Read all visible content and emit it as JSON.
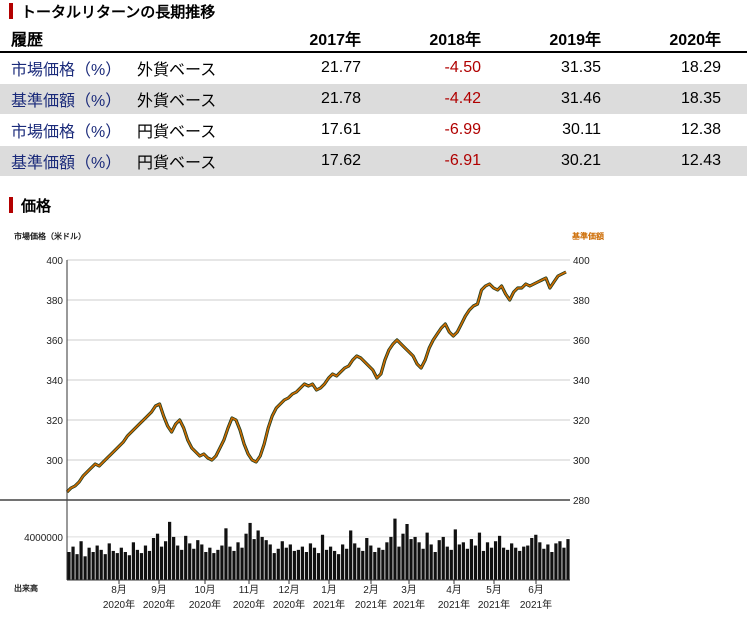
{
  "returns": {
    "title": "トータルリターンの長期推移",
    "header": {
      "label": "履歴",
      "years": [
        "2017年",
        "2018年",
        "2019年",
        "2020年"
      ]
    },
    "rows": [
      {
        "label": "市場価格（%）",
        "currency": "外貨ベース",
        "values": [
          "21.77",
          "-4.50",
          "31.35",
          "18.29"
        ]
      },
      {
        "label": "基準価額（%）",
        "currency": "外貨ベース",
        "values": [
          "21.78",
          "-4.42",
          "31.46",
          "18.35"
        ]
      },
      {
        "label": "市場価格（%）",
        "currency": "円貨ベース",
        "values": [
          "17.61",
          "-6.99",
          "30.11",
          "12.38"
        ]
      },
      {
        "label": "基準価額（%）",
        "currency": "円貨ベース",
        "values": [
          "17.62",
          "-6.91",
          "30.21",
          "12.43"
        ]
      }
    ]
  },
  "price": {
    "title": "価格"
  },
  "chart_data": {
    "type": "line",
    "left_axis_label": "市場価格（米ドル）",
    "right_axis_label": "基準価額",
    "volume_label": "出来高",
    "colors": {
      "market": "#1f3d1f",
      "nav": "#cc6a00",
      "volume": "#111111",
      "grid": "#cccccc"
    },
    "ylim": [
      280,
      400
    ],
    "y_ticks": [
      "400",
      "380",
      "360",
      "340",
      "320",
      "300"
    ],
    "right_ticks": [
      "400",
      "380",
      "360",
      "340",
      "320",
      "300",
      "280"
    ],
    "volume_tick": "4000000",
    "x_labels": [
      {
        "month": "8月",
        "year": "2020年"
      },
      {
        "month": "9月",
        "year": "2020年"
      },
      {
        "month": "10月",
        "year": "2020年"
      },
      {
        "month": "11月",
        "year": "2020年"
      },
      {
        "month": "12月",
        "year": "2020年"
      },
      {
        "month": "1月",
        "year": "2021年"
      },
      {
        "month": "2月",
        "year": "2021年"
      },
      {
        "month": "3月",
        "year": "2021年"
      },
      {
        "month": "4月",
        "year": "2021年"
      },
      {
        "month": "5月",
        "year": "2021年"
      },
      {
        "month": "6月",
        "year": "2021年"
      }
    ],
    "series": [
      {
        "values": [
          284,
          286,
          287,
          289,
          292,
          294,
          296,
          298,
          297,
          299,
          301,
          303,
          305,
          307,
          309,
          312,
          314,
          316,
          318,
          320,
          322,
          324,
          327,
          328,
          322,
          317,
          314,
          318,
          320,
          316,
          310,
          306,
          304,
          302,
          303,
          301,
          300,
          302,
          306,
          310,
          316,
          321,
          320,
          315,
          308,
          303,
          300,
          299,
          302,
          308,
          316,
          322,
          326,
          328,
          330,
          331,
          333,
          334,
          336,
          338,
          337,
          338,
          335,
          336,
          338,
          341,
          343,
          342,
          344,
          346,
          347,
          350,
          352,
          351,
          349,
          347,
          345,
          341,
          343,
          350,
          355,
          358,
          360,
          358,
          356,
          354,
          352,
          348,
          346,
          350,
          356,
          360,
          363,
          366,
          368,
          364,
          362,
          364,
          368,
          372,
          375,
          377,
          378,
          385,
          387,
          388,
          386,
          385,
          387,
          383,
          380,
          384,
          386,
          386,
          388,
          387,
          388,
          389,
          390,
          391,
          386,
          389,
          392,
          393,
          394
        ]
      }
    ],
    "volume": [
      2.6,
      3.1,
      2.4,
      3.6,
      2.2,
      3.0,
      2.6,
      3.2,
      2.8,
      2.4,
      3.4,
      2.7,
      2.5,
      3.0,
      2.6,
      2.3,
      3.5,
      2.8,
      2.5,
      3.2,
      2.7,
      3.9,
      4.3,
      3.1,
      3.6,
      5.4,
      4.0,
      3.2,
      2.8,
      4.1,
      3.4,
      2.9,
      3.7,
      3.3,
      2.6,
      3.0,
      2.5,
      2.8,
      3.2,
      4.8,
      3.1,
      2.7,
      3.5,
      3.0,
      4.3,
      5.3,
      3.8,
      4.6,
      4.0,
      3.7,
      3.3,
      2.5,
      2.9,
      3.6,
      3.0,
      3.3,
      2.7,
      2.8,
      3.1,
      2.6,
      3.4,
      3.0,
      2.5,
      4.2,
      2.8,
      3.1,
      2.7,
      2.4,
      3.3,
      2.9,
      4.6,
      3.4,
      3.0,
      2.7,
      3.9,
      3.2,
      2.6,
      3.0,
      2.8,
      3.5,
      4.0,
      5.7,
      3.1,
      4.3,
      5.2,
      3.8,
      4.0,
      3.5,
      2.9,
      4.4,
      3.3,
      2.6,
      3.7,
      4.0,
      3.1,
      2.8,
      4.7,
      3.3,
      3.5,
      2.9,
      3.8,
      3.2,
      4.4,
      2.7,
      3.5,
      3.0,
      3.6,
      4.1,
      3.0,
      2.8,
      3.4,
      3.0,
      2.7,
      3.1,
      3.2,
      3.9,
      4.2,
      3.5,
      2.9,
      3.3,
      2.6,
      3.4,
      3.6,
      3.0,
      3.8
    ]
  }
}
